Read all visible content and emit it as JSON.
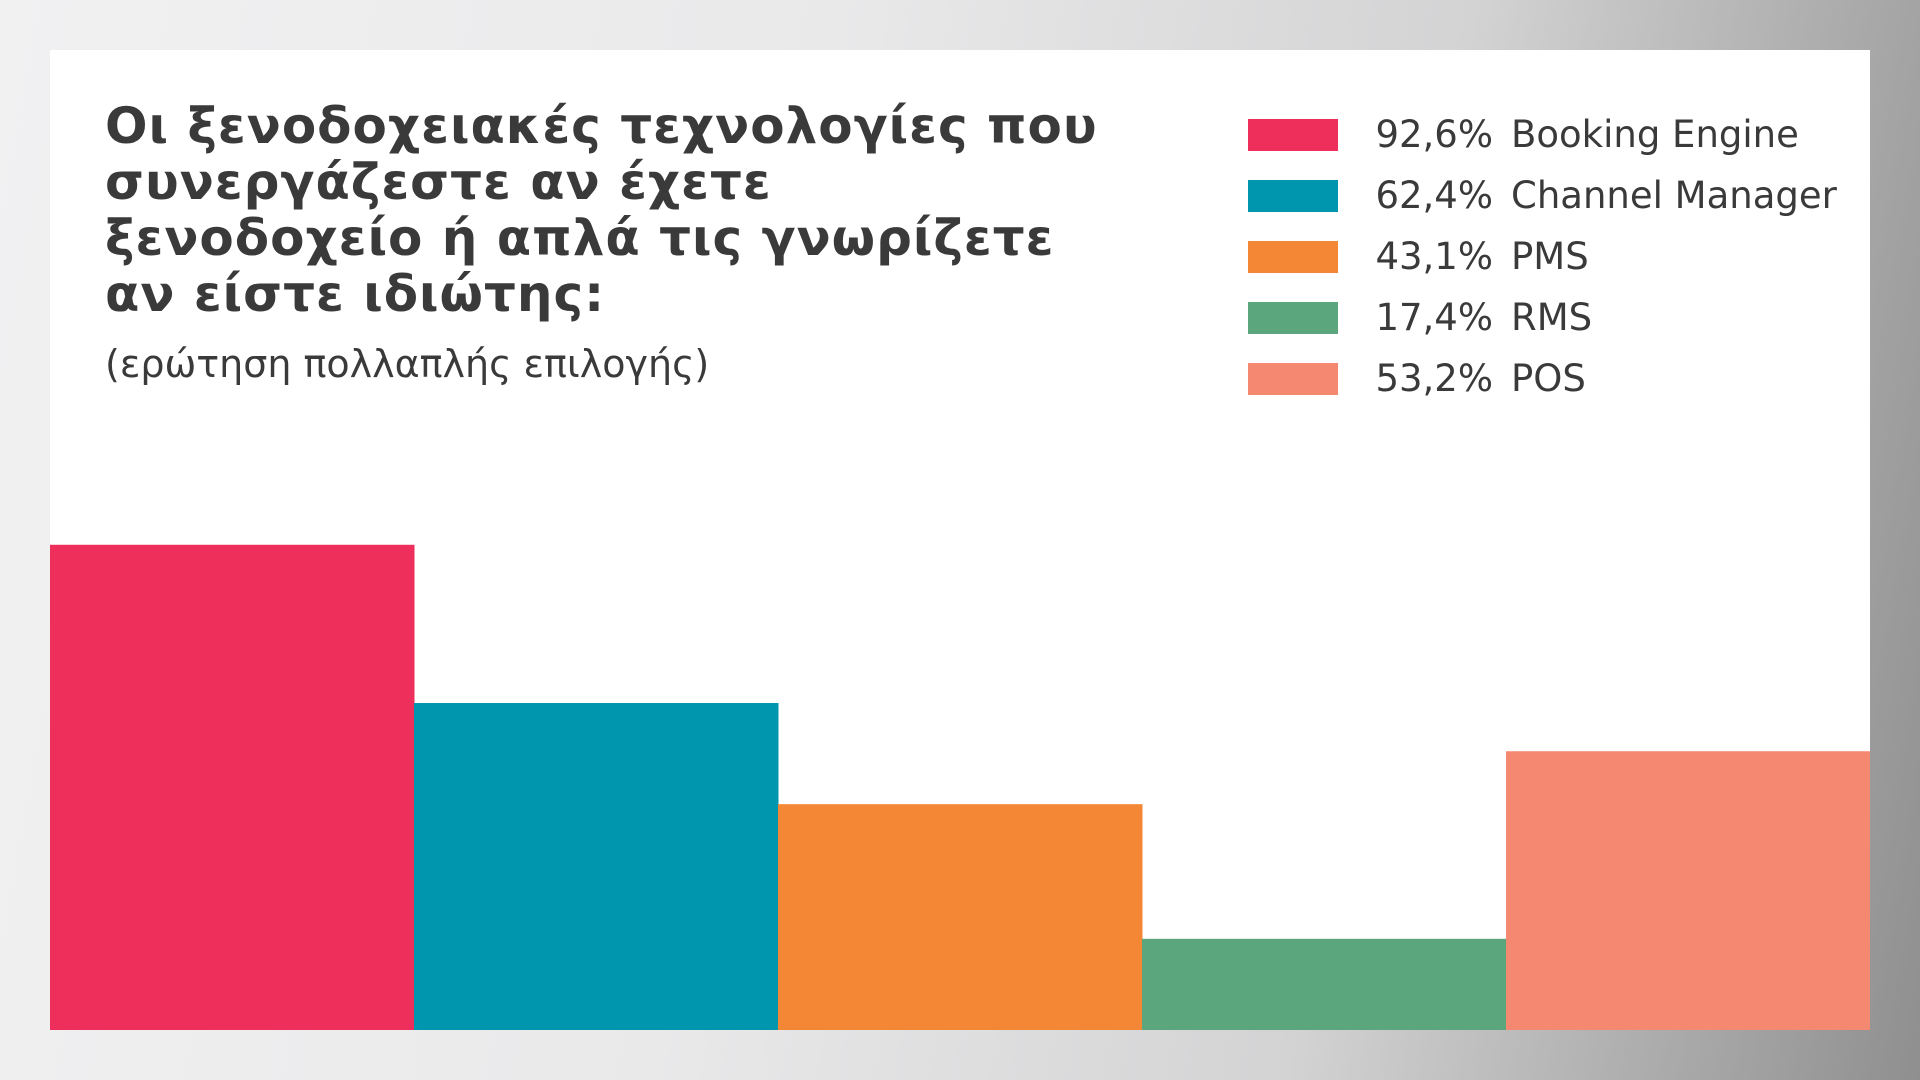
{
  "title": "Οι ξενοδοχειακές τεχνολογίες που συνεργάζεστε αν έχετε ξενοδοχείο ή απλά τις γνωρίζετε αν είστε ιδιώτης:",
  "subtitle": "(ερώτηση πολλαπλής επιλογής)",
  "chart_data": {
    "type": "bar",
    "title": "Οι ξενοδοχειακές τεχνολογίες που συνεργάζεστε αν έχετε ξενοδοχείο ή απλά τις γνωρίζετε αν είστε ιδιώτης:",
    "subtitle": "(ερώτηση πολλαπλής επιλογής)",
    "categories": [
      "Booking Engine",
      "Channel Manager",
      "PMS",
      "RMS",
      "POS"
    ],
    "values": [
      92.6,
      62.4,
      43.1,
      17.4,
      53.2
    ],
    "value_labels": [
      "92,6%",
      "62,4%",
      "43,1%",
      "17,4%",
      "53,2%"
    ],
    "colors": [
      "#ee2f5b",
      "#0096ae",
      "#f48735",
      "#5ba67c",
      "#f48870"
    ],
    "unit": "%",
    "ylim": [
      0,
      100
    ],
    "xlabel": "",
    "ylabel": "",
    "grid": false,
    "axes_visible": false,
    "legend_position": "top-right"
  }
}
